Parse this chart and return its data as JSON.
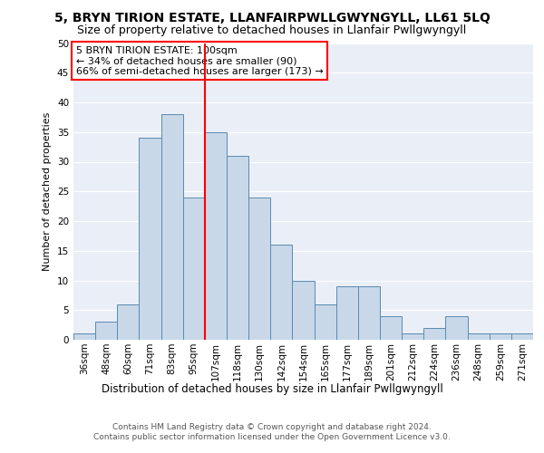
{
  "title": "5, BRYN TIRION ESTATE, LLANFAIRPWLLGWYNGYLL, LL61 5LQ",
  "subtitle": "Size of property relative to detached houses in Llanfair Pwllgwyngyll",
  "xlabel": "Distribution of detached houses by size in Llanfair Pwllgwyngyll",
  "ylabel": "Number of detached properties",
  "categories": [
    "36sqm",
    "48sqm",
    "60sqm",
    "71sqm",
    "83sqm",
    "95sqm",
    "107sqm",
    "118sqm",
    "130sqm",
    "142sqm",
    "154sqm",
    "165sqm",
    "177sqm",
    "189sqm",
    "201sqm",
    "212sqm",
    "224sqm",
    "236sqm",
    "248sqm",
    "259sqm",
    "271sqm"
  ],
  "values": [
    1,
    3,
    6,
    34,
    38,
    24,
    35,
    31,
    24,
    16,
    10,
    6,
    9,
    9,
    4,
    1,
    2,
    4,
    1,
    1,
    1
  ],
  "bar_color": "#c8d8e8",
  "bar_edge_color": "#5a8ab0",
  "highlight_color": "red",
  "annotation_text": "5 BRYN TIRION ESTATE: 100sqm\n← 34% of detached houses are smaller (90)\n66% of semi-detached houses are larger (173) →",
  "annotation_box_color": "white",
  "annotation_box_edge": "red",
  "ylim": [
    0,
    50
  ],
  "yticks": [
    0,
    5,
    10,
    15,
    20,
    25,
    30,
    35,
    40,
    45,
    50
  ],
  "background_color": "#eaeff7",
  "grid_color": "white",
  "footer": "Contains HM Land Registry data © Crown copyright and database right 2024.\nContains public sector information licensed under the Open Government Licence v3.0.",
  "title_fontsize": 10,
  "subtitle_fontsize": 9,
  "xlabel_fontsize": 8.5,
  "ylabel_fontsize": 8,
  "tick_fontsize": 7.5,
  "annotation_fontsize": 8,
  "footer_fontsize": 6.5
}
